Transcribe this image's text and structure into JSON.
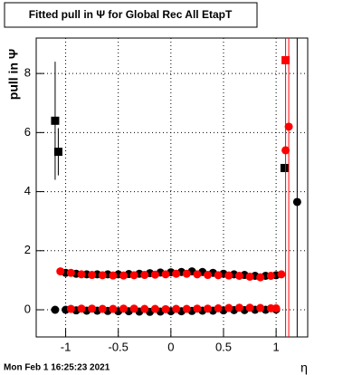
{
  "chart_data": {
    "type": "scatter",
    "title": "Fitted pull in  Ψ  for Global Rec All EtapT",
    "x_label": "η",
    "y_label": "pull in  Ψ",
    "footer": "Mon Feb  1 16:25:23 2021",
    "xlim": [
      -1.28,
      1.3
    ],
    "ylim": [
      -0.92,
      9.2
    ],
    "xticks": [
      -1,
      -0.5,
      0,
      0.5,
      1
    ],
    "yticks": [
      0,
      2,
      4,
      6,
      8
    ],
    "grid": true,
    "series": [
      {
        "color": "#000000",
        "marker": "square",
        "x": [
          -1.1,
          -1.07,
          1.08
        ],
        "values": [
          6.4,
          5.35,
          4.8
        ],
        "errors": [
          2.0,
          0.8,
          null
        ]
      },
      {
        "color": "#000000",
        "marker": "circle",
        "x": [
          -1.1,
          -1.0,
          -0.9,
          -0.8,
          -0.7,
          -0.6,
          -0.5,
          -0.4,
          -0.3,
          -0.2,
          -0.1,
          0,
          0.1,
          0.2,
          0.3,
          0.4,
          0.5,
          0.6,
          0.7,
          0.8,
          0.9,
          1.0,
          -1.0,
          -0.9,
          -0.8,
          -0.7,
          -0.6,
          -0.5,
          -0.4,
          -0.3,
          -0.2,
          -0.1,
          0,
          0.1,
          0.2,
          0.3,
          0.4,
          0.5,
          0.6,
          0.7,
          0.8,
          0.9,
          1.0,
          1.2
        ],
        "values": [
          0,
          0,
          -0.02,
          -0.03,
          -0.03,
          -0.04,
          -0.05,
          -0.05,
          -0.06,
          -0.07,
          -0.06,
          -0.05,
          -0.05,
          -0.04,
          -0.03,
          -0.03,
          -0.02,
          -0.01,
          -0.01,
          0,
          0,
          0.01,
          1.25,
          1.22,
          1.2,
          1.2,
          1.2,
          1.2,
          1.21,
          1.22,
          1.24,
          1.26,
          1.27,
          1.28,
          1.3,
          1.28,
          1.25,
          1.22,
          1.2,
          1.18,
          1.15,
          1.15,
          1.17,
          3.65
        ],
        "errors": [
          null,
          null,
          null,
          null,
          null,
          null,
          null,
          null,
          null,
          null,
          null,
          null,
          null,
          null,
          null,
          null,
          null,
          null,
          null,
          null,
          null,
          null,
          null,
          null,
          null,
          null,
          null,
          null,
          null,
          null,
          null,
          null,
          null,
          null,
          null,
          null,
          null,
          null,
          null,
          null,
          null,
          null,
          null,
          12
        ]
      },
      {
        "color": "#ff0000",
        "marker": "square",
        "x": [
          1.09
        ],
        "values": [
          8.45
        ],
        "errors": [
          12
        ]
      },
      {
        "color": "#ff0000",
        "marker": "circle",
        "x": [
          -0.95,
          -0.85,
          -0.75,
          -0.65,
          -0.55,
          -0.45,
          -0.35,
          -0.25,
          -0.15,
          -0.05,
          0.05,
          0.15,
          0.25,
          0.35,
          0.45,
          0.55,
          0.65,
          0.75,
          0.85,
          0.95,
          1.0,
          -1.05,
          -0.95,
          -0.85,
          -0.75,
          -0.65,
          -0.55,
          -0.45,
          -0.35,
          -0.25,
          -0.15,
          -0.05,
          0.05,
          0.15,
          0.25,
          0.35,
          0.45,
          0.55,
          0.65,
          0.75,
          0.85,
          0.95,
          1.05,
          1.09,
          1.12
        ],
        "values": [
          0.03,
          0.04,
          0.04,
          0.03,
          0.03,
          0.04,
          0.04,
          0.03,
          0.03,
          0.02,
          0.03,
          0.03,
          0.04,
          0.04,
          0.05,
          0.06,
          0.07,
          0.07,
          0.06,
          0.05,
          0.05,
          1.3,
          1.25,
          1.2,
          1.18,
          1.17,
          1.16,
          1.16,
          1.17,
          1.18,
          1.19,
          1.2,
          1.22,
          1.22,
          1.2,
          1.18,
          1.17,
          1.16,
          1.15,
          1.12,
          1.1,
          1.15,
          1.2,
          5.4,
          6.2
        ],
        "errors": [
          null,
          null,
          null,
          null,
          null,
          null,
          null,
          null,
          null,
          null,
          null,
          null,
          null,
          null,
          null,
          null,
          null,
          null,
          null,
          null,
          null,
          null,
          null,
          null,
          null,
          null,
          null,
          null,
          null,
          null,
          null,
          null,
          null,
          null,
          null,
          null,
          null,
          null,
          null,
          null,
          null,
          null,
          null,
          null,
          12
        ]
      }
    ]
  }
}
